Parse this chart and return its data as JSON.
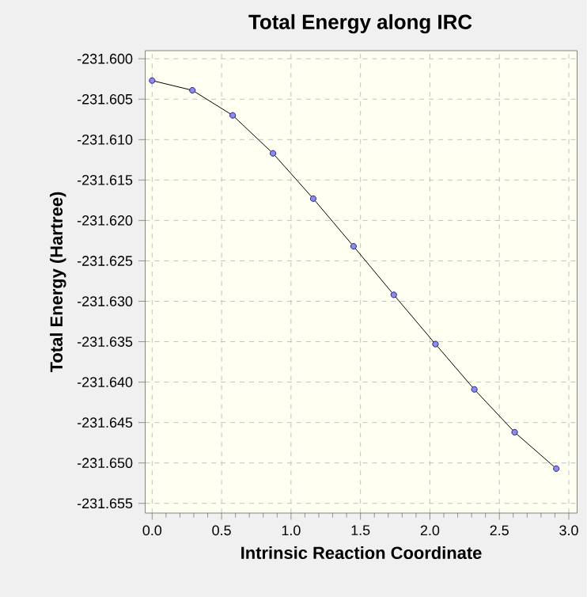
{
  "chart_data": {
    "type": "line",
    "title": "Total Energy along IRC",
    "xlabel": "Intrinsic Reaction Coordinate",
    "ylabel": "Total Energy (Hartree)",
    "x": [
      0,
      0.29,
      0.58,
      0.87,
      1.16,
      1.45,
      1.74,
      2.04,
      2.32,
      2.61,
      2.91
    ],
    "series": [
      {
        "color": "#000000",
        "values": [
          -231.6027,
          -231.6039,
          -231.607,
          -231.6117,
          -231.6173,
          -231.6232,
          -231.6292,
          -231.6353,
          -231.6409,
          -231.6462,
          -231.6507
        ]
      }
    ],
    "xlim": [
      -0.05,
      3.06
    ],
    "ylim": [
      -231.6562,
      -231.599
    ],
    "xticks": [
      {
        "value": 0,
        "label": "0.0"
      },
      0.5,
      {
        "value": 1,
        "label": "1.0"
      },
      1.5,
      {
        "value": 2,
        "label": "2.0"
      },
      2.5,
      {
        "value": 3,
        "label": "3.0"
      }
    ],
    "yticks": [
      {
        "value": -231.6,
        "label": "-231.600"
      },
      -231.605,
      {
        "value": -231.61,
        "label": "-231.610"
      },
      -231.615,
      {
        "value": -231.62,
        "label": "-231.620"
      },
      -231.625,
      {
        "value": -231.63,
        "label": "-231.630"
      },
      -231.635,
      {
        "value": -231.64,
        "label": "-231.640"
      },
      -231.645,
      {
        "value": -231.65,
        "label": "-231.650"
      },
      -231.655
    ],
    "grid": true,
    "marker": "circle",
    "line_style": "solid"
  }
}
